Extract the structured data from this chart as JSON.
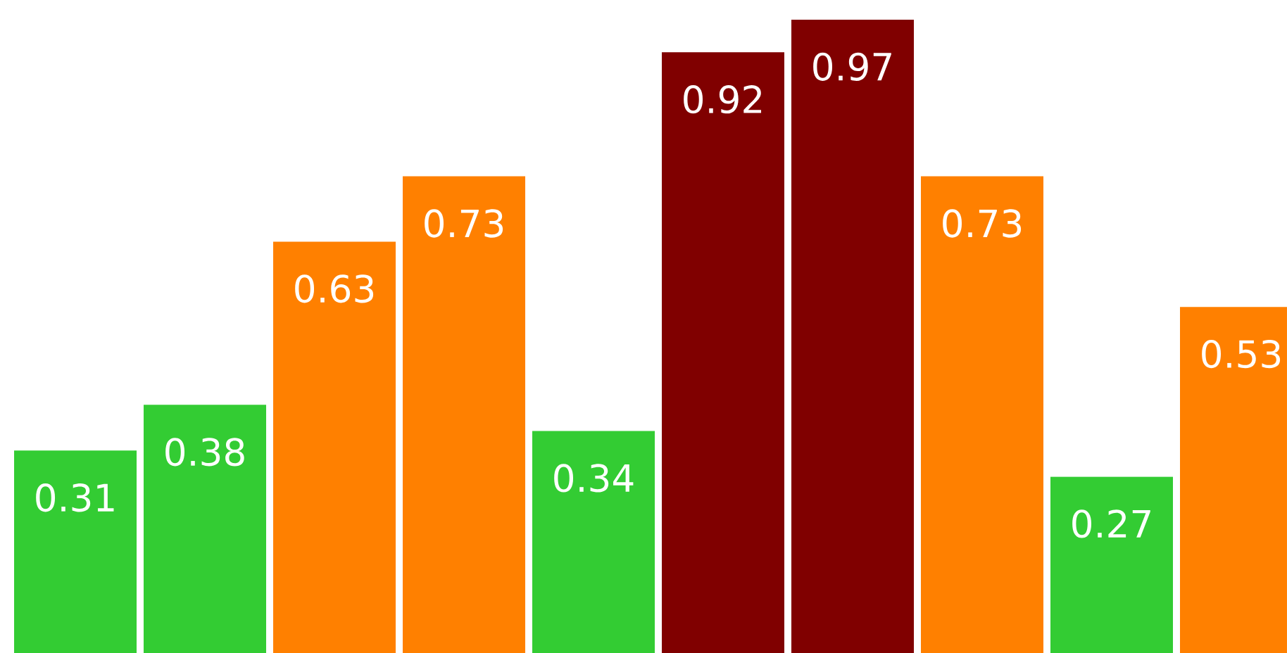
{
  "chart_data": {
    "type": "bar",
    "categories": [
      null,
      null,
      null,
      null,
      null,
      null,
      null,
      null,
      null,
      null
    ],
    "values": [
      0.31,
      0.38,
      0.63,
      0.73,
      0.34,
      0.92,
      0.97,
      0.73,
      0.27,
      0.53
    ],
    "colors": [
      "#33cc33",
      "#33cc33",
      "#ff8000",
      "#ff8000",
      "#33cc33",
      "#800000",
      "#800000",
      "#ff8000",
      "#33cc33",
      "#ff8000"
    ],
    "data_labels": true
  }
}
